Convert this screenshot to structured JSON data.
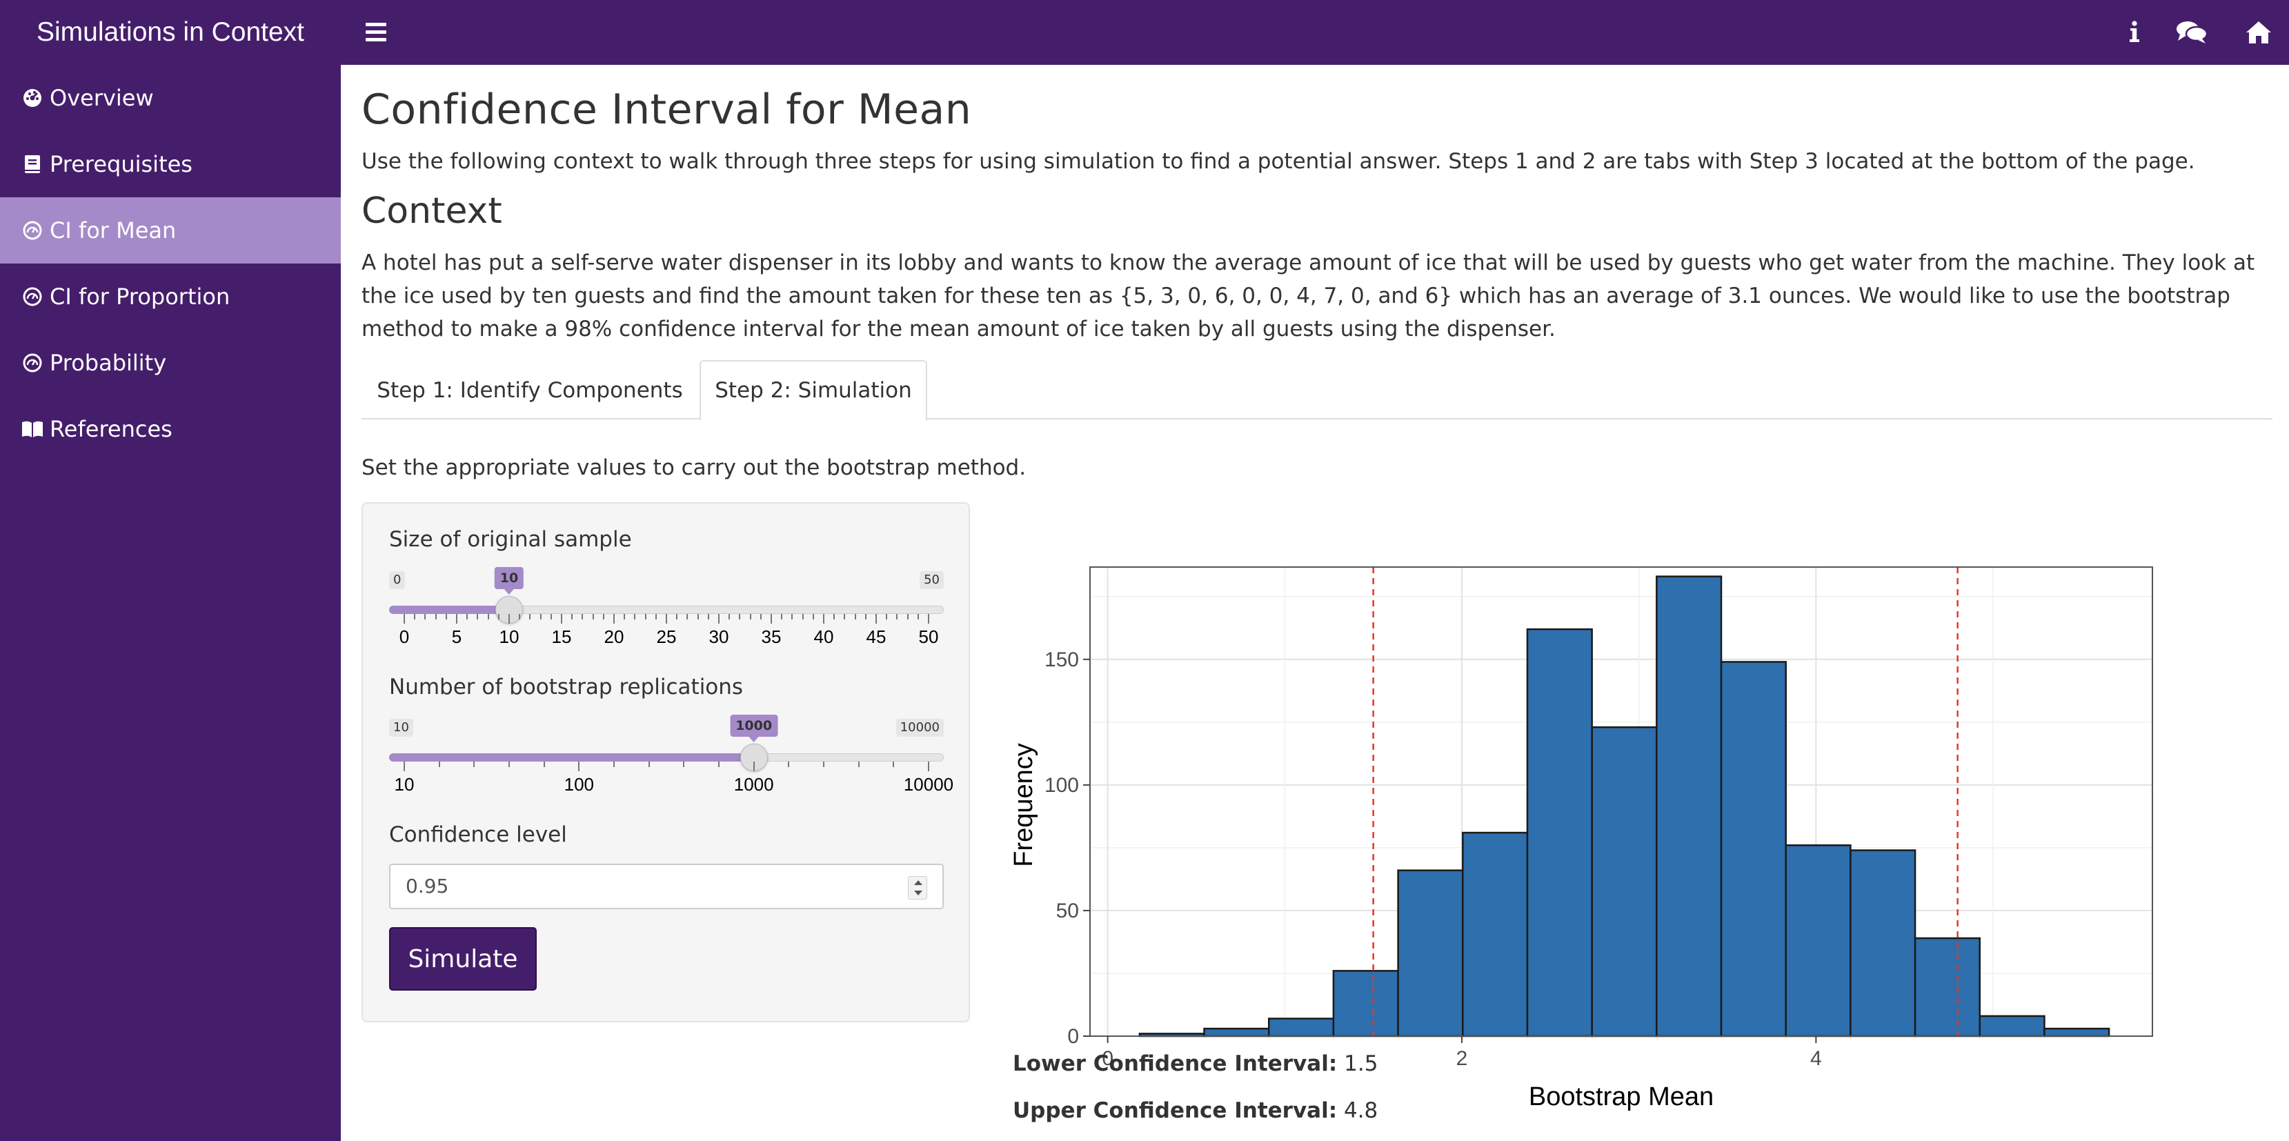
{
  "app": {
    "title": "Simulations in Context"
  },
  "topbar_icons": [
    {
      "name": "info-icon"
    },
    {
      "name": "comments-icon"
    },
    {
      "name": "home-icon"
    }
  ],
  "sidebar": {
    "items": [
      {
        "label": "Overview",
        "icon": "dashboard-icon",
        "active": false
      },
      {
        "label": "Prerequisites",
        "icon": "book-icon",
        "active": false
      },
      {
        "label": "CI for Mean",
        "icon": "gauge-icon",
        "active": true
      },
      {
        "label": "CI for Proportion",
        "icon": "gauge-icon",
        "active": false
      },
      {
        "label": "Probability",
        "icon": "gauge-icon",
        "active": false
      },
      {
        "label": "References",
        "icon": "open-book-icon",
        "active": false
      }
    ]
  },
  "main": {
    "title": "Confidence Interval for Mean",
    "intro": "Use the following context to walk through three steps for using simulation to find a potential answer. Steps 1 and 2 are tabs with Step 3 located at the bottom of the page.",
    "context_heading": "Context",
    "context_text": "A hotel has put a self-serve water dispenser in its lobby and wants to know the average amount of ice that will be used by guests who get water from the machine. They look at the ice used by ten guests and find the amount taken for these ten as {5, 3, 0, 6, 0, 0, 4, 7, 0, and 6} which has an average of 3.1 ounces. We would like to use the bootstrap method to make a 98% confidence interval for the mean amount of ice taken by all guests using the dispenser.",
    "tabs": [
      {
        "label": "Step 1: Identify Components",
        "active": false
      },
      {
        "label": "Step 2: Simulation",
        "active": true
      }
    ],
    "instruction": "Set the appropriate values to carry out the bootstrap method."
  },
  "controls": {
    "sample_size": {
      "label": "Size of original sample",
      "min": "0",
      "max": "50",
      "value": "10",
      "value_num": 10,
      "tick_labels": [
        "0",
        "5",
        "10",
        "15",
        "20",
        "25",
        "30",
        "35",
        "40",
        "45",
        "50"
      ]
    },
    "replications": {
      "label": "Number of bootstrap replications",
      "min": "10",
      "max": "10000",
      "value": "1000",
      "log_value": 3,
      "tick_labels": [
        "10",
        "100",
        "1000",
        "10000"
      ]
    },
    "confidence": {
      "label": "Confidence level",
      "value": "0.95"
    },
    "simulate_label": "Simulate"
  },
  "results": {
    "lower_label": "Lower Confidence Interval:",
    "lower_value": "1.5",
    "upper_label": "Upper Confidence Interval:",
    "upper_value": "4.8"
  },
  "colors": {
    "brand": "#451e6b",
    "active_nav": "#a48ac8",
    "bar_fill": "#2e6fad",
    "ci_line": "#e8352b"
  },
  "chart_data": {
    "type": "bar",
    "subtype": "histogram",
    "xlabel": "Bootstrap Mean",
    "ylabel": "Frequency",
    "x_ticks": [
      "0",
      "2",
      "4"
    ],
    "y_ticks": [
      "0",
      "50",
      "100",
      "150"
    ],
    "xlim": [
      -0.1,
      5.9
    ],
    "ylim": [
      0,
      184
    ],
    "bins": [
      {
        "x0": 0.18,
        "x1": 0.545,
        "count": 1
      },
      {
        "x0": 0.545,
        "x1": 0.91,
        "count": 3
      },
      {
        "x0": 0.91,
        "x1": 1.275,
        "count": 7
      },
      {
        "x0": 1.275,
        "x1": 1.64,
        "count": 26
      },
      {
        "x0": 1.64,
        "x1": 2.005,
        "count": 66
      },
      {
        "x0": 2.005,
        "x1": 2.37,
        "count": 81
      },
      {
        "x0": 2.37,
        "x1": 2.735,
        "count": 162
      },
      {
        "x0": 2.735,
        "x1": 3.1,
        "count": 123
      },
      {
        "x0": 3.1,
        "x1": 3.465,
        "count": 183
      },
      {
        "x0": 3.465,
        "x1": 3.83,
        "count": 149
      },
      {
        "x0": 3.83,
        "x1": 4.195,
        "count": 76
      },
      {
        "x0": 4.195,
        "x1": 4.56,
        "count": 74
      },
      {
        "x0": 4.56,
        "x1": 4.925,
        "count": 39
      },
      {
        "x0": 4.925,
        "x1": 5.29,
        "count": 8
      },
      {
        "x0": 5.29,
        "x1": 5.655,
        "count": 3
      }
    ],
    "vlines": [
      1.5,
      4.8
    ],
    "grid": true
  }
}
